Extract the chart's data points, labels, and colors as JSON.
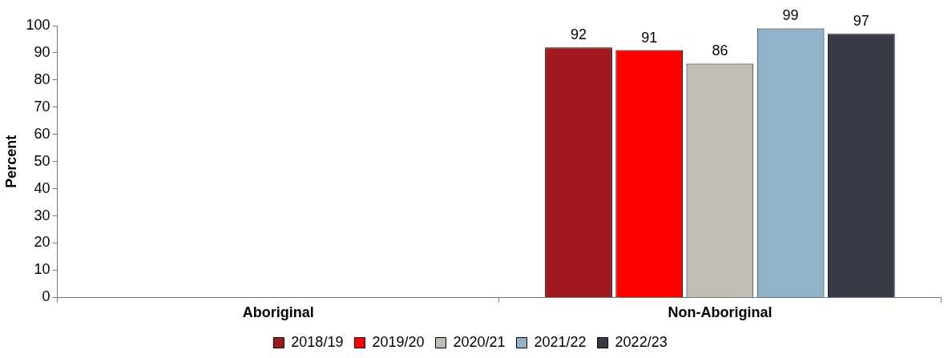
{
  "chart_data": {
    "type": "bar",
    "ylabel": "Percent",
    "categories": [
      "Aboriginal",
      "Non-Aboriginal"
    ],
    "series": [
      {
        "name": "2018/19",
        "color": "#a0191f",
        "values": [
          null,
          92
        ]
      },
      {
        "name": "2019/20",
        "color": "#ff0000",
        "values": [
          null,
          91
        ]
      },
      {
        "name": "2020/21",
        "color": "#c0bdb5",
        "values": [
          null,
          86
        ]
      },
      {
        "name": "2021/22",
        "color": "#91b3c9",
        "values": [
          null,
          99
        ]
      },
      {
        "name": "2022/23",
        "color": "#363a46",
        "values": [
          null,
          97
        ]
      }
    ],
    "ylim": [
      0,
      100
    ],
    "yticks": [
      0,
      10,
      20,
      30,
      40,
      50,
      60,
      70,
      80,
      90,
      100
    ],
    "grid": false,
    "legend": "bottom",
    "data_labels": true
  }
}
